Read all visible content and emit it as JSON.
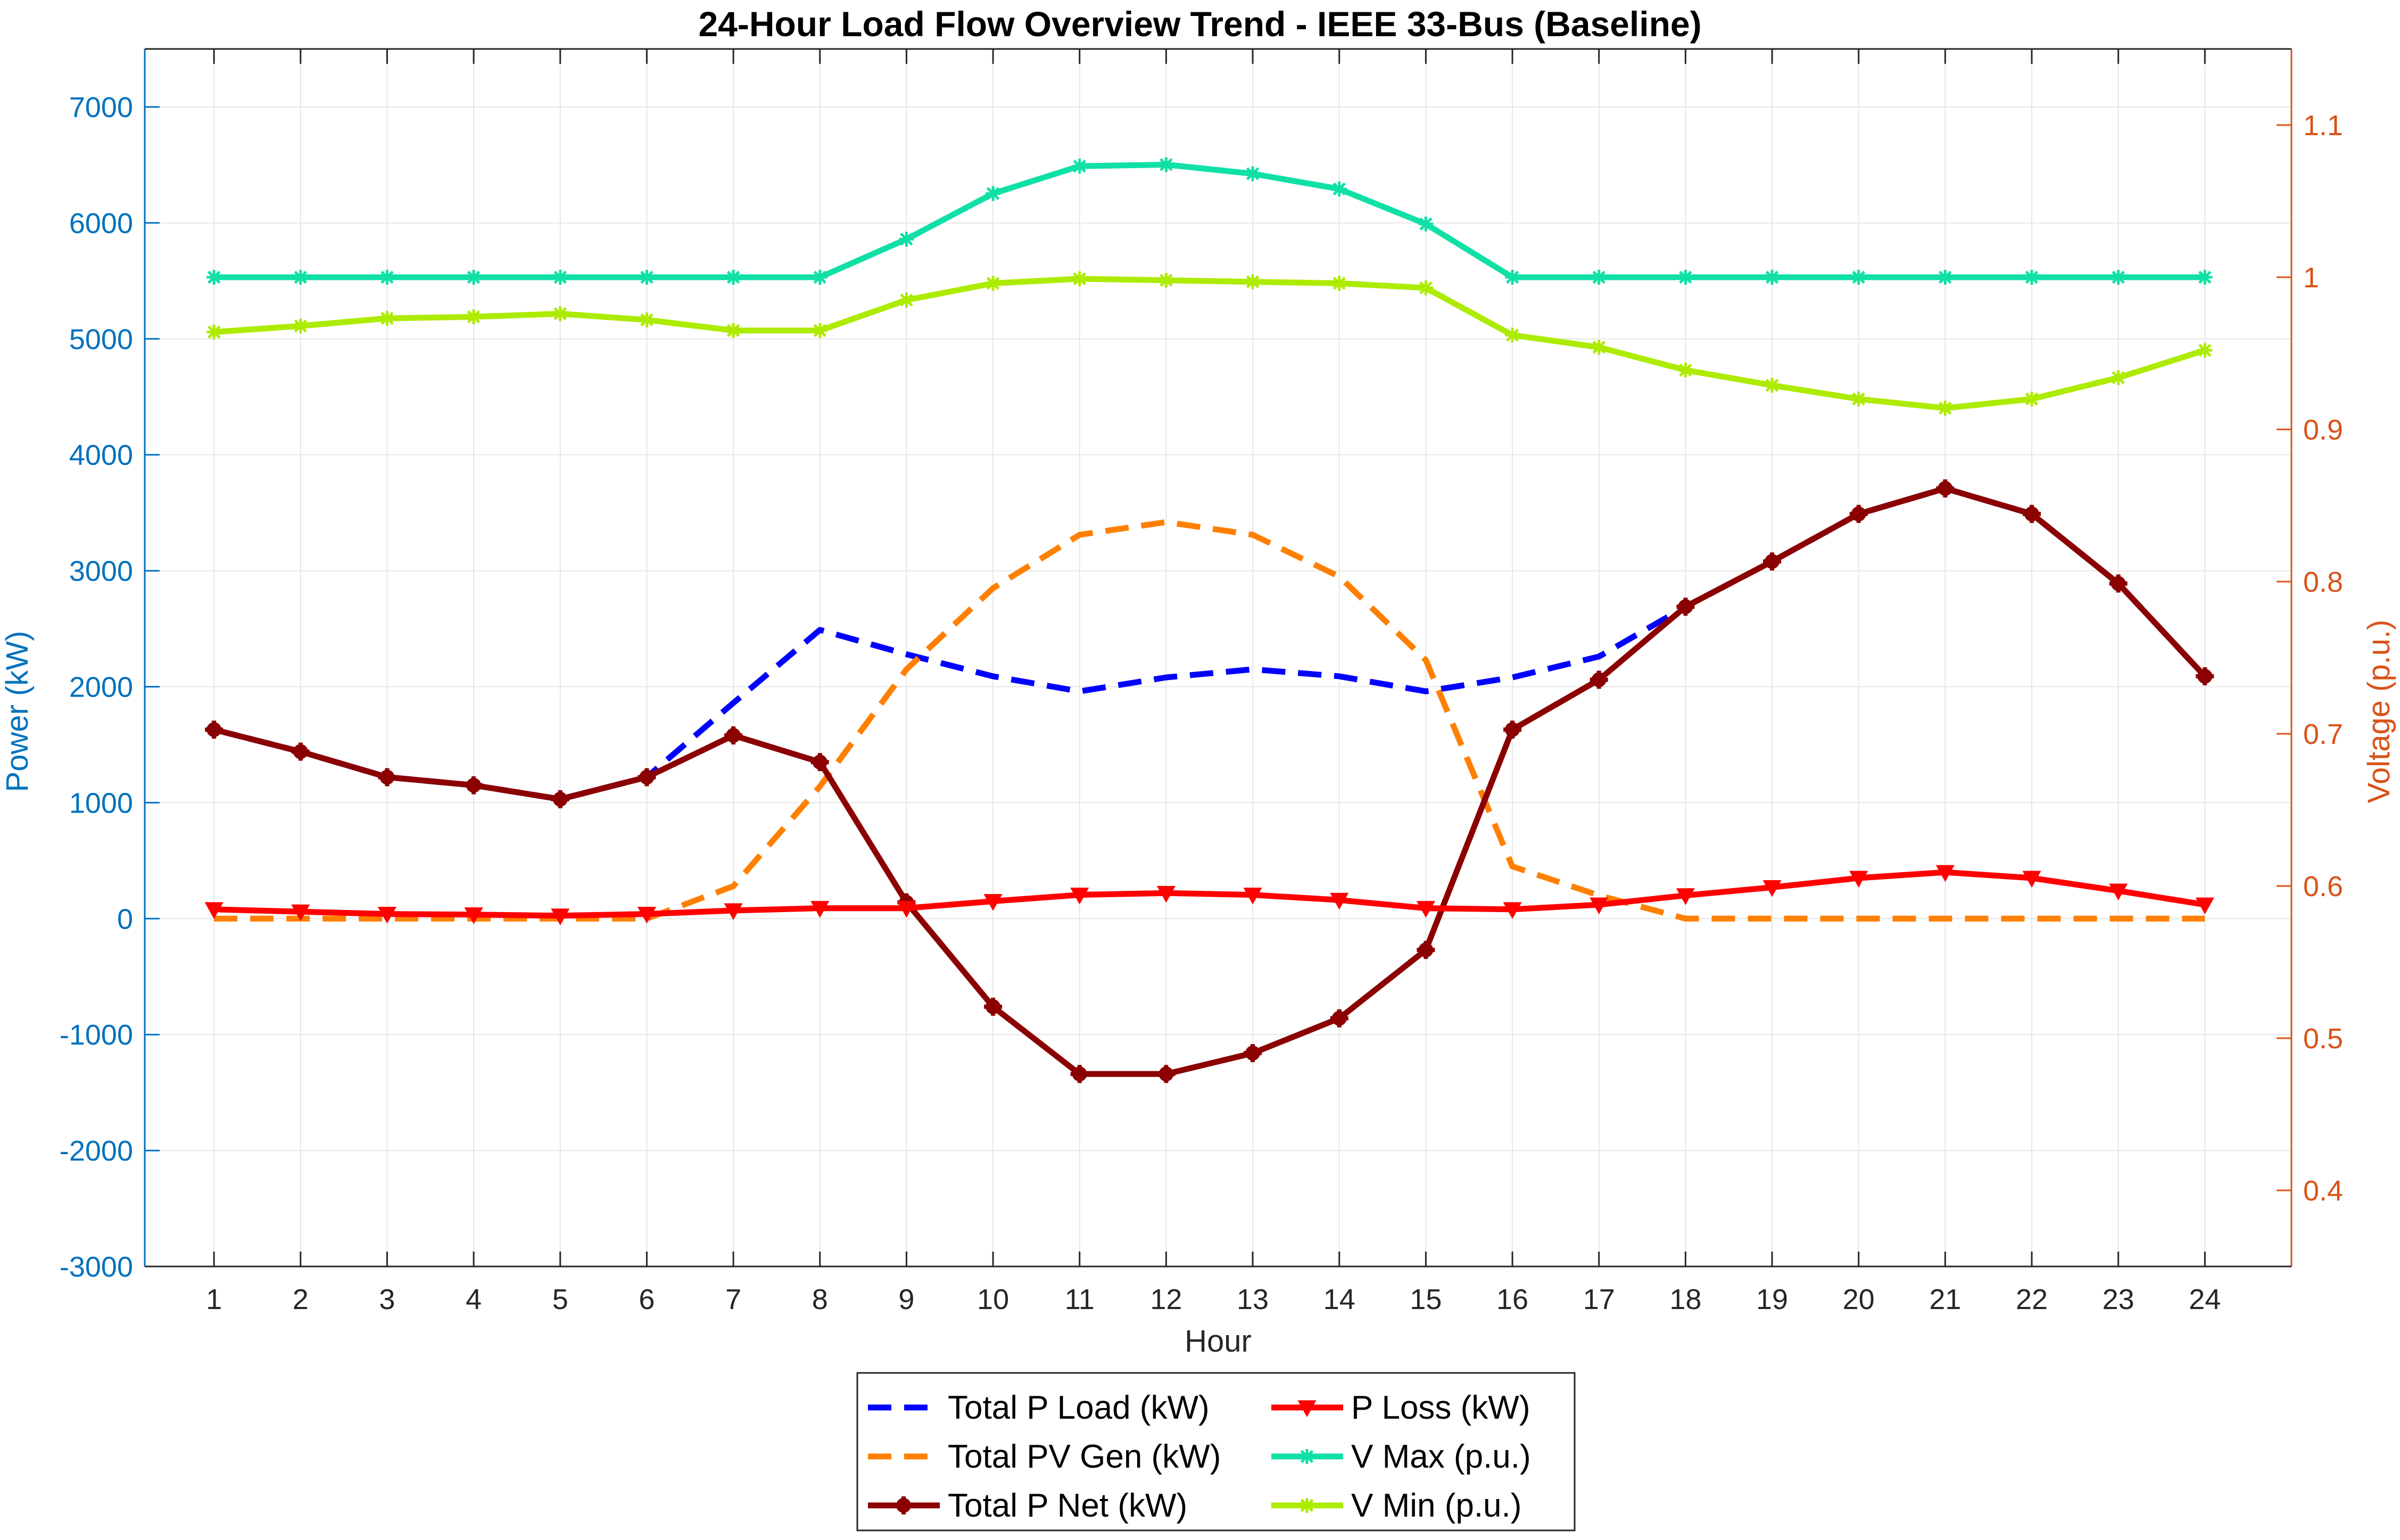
{
  "chart_data": {
    "type": "line",
    "title": "24-Hour Load Flow Overview Trend - IEEE 33-Bus (Baseline)",
    "xlabel": "Hour",
    "ylabel_left": "Power (kW)",
    "ylabel_right": "Voltage (p.u.)",
    "x": [
      1,
      2,
      3,
      4,
      5,
      6,
      7,
      8,
      9,
      10,
      11,
      12,
      13,
      14,
      15,
      16,
      17,
      18,
      19,
      20,
      21,
      22,
      23,
      24
    ],
    "xlim": [
      0.2,
      25
    ],
    "ylim_left": [
      -3000,
      7500
    ],
    "ylim_right": [
      0.35,
      1.15
    ],
    "yticks_left": [
      -3000,
      -2000,
      -1000,
      0,
      1000,
      2000,
      3000,
      4000,
      5000,
      6000,
      7000
    ],
    "yticks_right": [
      0.4,
      0.5,
      0.6,
      0.7,
      0.8,
      0.9,
      1.0,
      1.1
    ],
    "yticklabels_right": [
      "0.4",
      "0.5",
      "0.6",
      "0.7",
      "0.8",
      "0.9",
      "1",
      "1.1"
    ],
    "grid": true,
    "legend_position": "bottom-outside",
    "series": [
      {
        "name": "Total P Load (kW)",
        "axis": "left",
        "color": "#0000FF",
        "style": "dashed",
        "marker": "none",
        "values": [
          1630,
          1440,
          1220,
          1150,
          1030,
          1220,
          1860,
          2490,
          2280,
          2090,
          1960,
          2080,
          2150,
          2090,
          1960,
          2080,
          2260,
          2690,
          3080,
          3490,
          3710,
          3490,
          2890,
          2090
        ]
      },
      {
        "name": "Total PV Gen (kW)",
        "axis": "left",
        "color": "#FF8000",
        "style": "dashed",
        "marker": "none",
        "values": [
          0,
          0,
          0,
          0,
          0,
          0,
          280,
          1140,
          2150,
          2850,
          3310,
          3420,
          3310,
          2950,
          2230,
          450,
          200,
          0,
          0,
          0,
          0,
          0,
          0,
          0
        ]
      },
      {
        "name": "Total P Net (kW)",
        "axis": "left",
        "color": "#8B0000",
        "style": "solid",
        "marker": "plus",
        "values": [
          1630,
          1440,
          1220,
          1150,
          1030,
          1220,
          1580,
          1350,
          140,
          -760,
          -1340,
          -1340,
          -1160,
          -860,
          -270,
          1630,
          2060,
          2690,
          3080,
          3490,
          3710,
          3490,
          2890,
          2090
        ]
      },
      {
        "name": "P Loss (kW)",
        "axis": "left",
        "color": "#FF0000",
        "style": "solid",
        "marker": "triangle-down",
        "values": [
          80,
          60,
          40,
          35,
          25,
          40,
          70,
          90,
          90,
          150,
          205,
          220,
          205,
          160,
          90,
          80,
          120,
          200,
          270,
          350,
          400,
          350,
          240,
          120
        ]
      },
      {
        "name": "V Max (p.u.)",
        "axis": "right",
        "color": "#10E0A6",
        "style": "solid",
        "marker": "star",
        "values": [
          1.0,
          1.0,
          1.0,
          1.0,
          1.0,
          1.0,
          1.0,
          1.0,
          1.025,
          1.055,
          1.073,
          1.074,
          1.068,
          1.058,
          1.035,
          1.0,
          1.0,
          1.0,
          1.0,
          1.0,
          1.0,
          1.0,
          1.0,
          1.0
        ]
      },
      {
        "name": "V Min (p.u.)",
        "axis": "right",
        "color": "#ADEB00",
        "style": "solid",
        "marker": "star",
        "values": [
          0.964,
          0.968,
          0.973,
          0.974,
          0.976,
          0.972,
          0.965,
          0.965,
          0.985,
          0.996,
          0.999,
          0.998,
          0.997,
          0.996,
          0.993,
          0.962,
          0.954,
          0.939,
          0.929,
          0.92,
          0.914,
          0.92,
          0.934,
          0.952
        ]
      }
    ]
  }
}
